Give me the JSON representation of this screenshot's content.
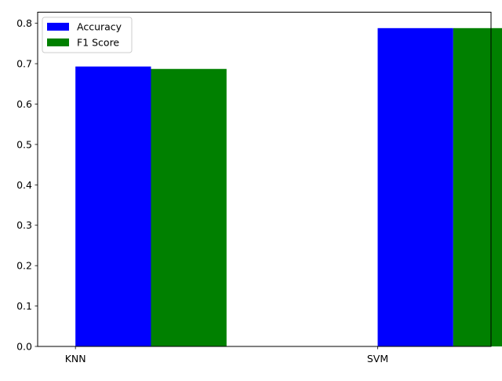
{
  "chart_data": {
    "type": "bar",
    "categories": [
      "KNN",
      "SVM"
    ],
    "series": [
      {
        "name": "Accuracy",
        "values": [
          0.693,
          0.788
        ],
        "color": "#0000ff"
      },
      {
        "name": "F1 Score",
        "values": [
          0.687,
          0.788
        ],
        "color": "#008000"
      }
    ],
    "y_ticks": [
      "0.0",
      "0.1",
      "0.2",
      "0.3",
      "0.4",
      "0.5",
      "0.6",
      "0.7",
      "0.8"
    ],
    "ylim": [
      0,
      0.8275
    ],
    "legend_position": "top-left",
    "grid": false,
    "title": "",
    "xlabel": "",
    "ylabel": ""
  }
}
